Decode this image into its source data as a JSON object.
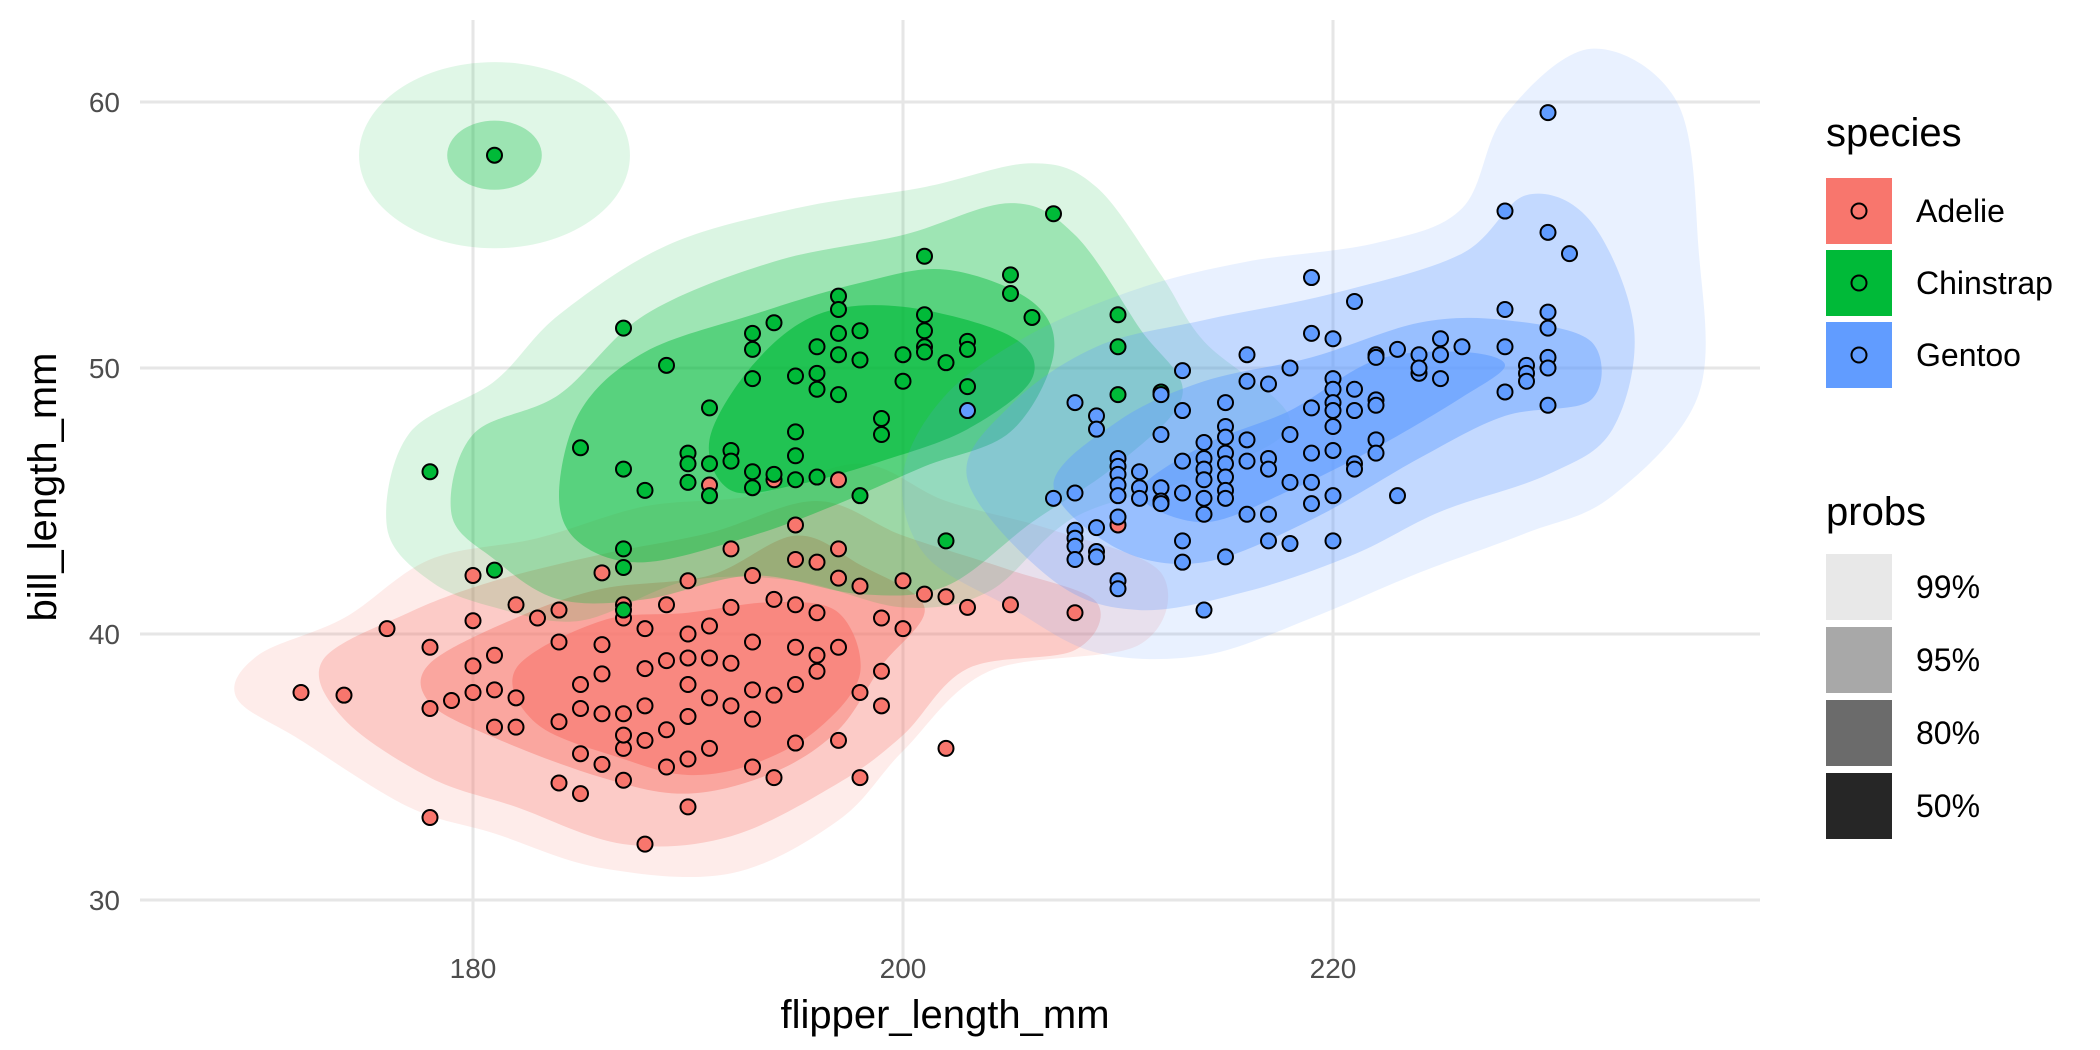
{
  "chart_data": {
    "type": "scatter",
    "subtype": "2d-density-contour-with-points",
    "title": "",
    "xlabel": "flipper_length_mm",
    "ylabel": "bill_length_mm",
    "xlim": [
      165,
      238
    ],
    "ylim": [
      29,
      63
    ],
    "xticks": [
      180,
      200,
      220
    ],
    "yticks": [
      30,
      40,
      50,
      60
    ],
    "grid": true,
    "legend_position": "right",
    "legends": [
      {
        "title": "species",
        "entries": [
          {
            "label": "Adelie",
            "color": "#F8766D"
          },
          {
            "label": "Chinstrap",
            "color": "#00BA38"
          },
          {
            "label": "Gentoo",
            "color": "#619CFF"
          }
        ]
      },
      {
        "title": "probs",
        "entries": [
          {
            "label": "99%",
            "color": "#E8E8E8"
          },
          {
            "label": "95%",
            "color": "#A8A8A8"
          },
          {
            "label": "80%",
            "color": "#6B6B6B"
          },
          {
            "label": "50%",
            "color": "#262626"
          }
        ]
      }
    ],
    "contour_probs": [
      0.99,
      0.95,
      0.8,
      0.5
    ],
    "series": [
      {
        "name": "Adelie",
        "color": "#F8766D",
        "points": [
          [
            172,
            37.8
          ],
          [
            174,
            37.7
          ],
          [
            176,
            40.2
          ],
          [
            178,
            33.1
          ],
          [
            178,
            37.2
          ],
          [
            178,
            39.5
          ],
          [
            179,
            37.5
          ],
          [
            180,
            42.2
          ],
          [
            180,
            40.5
          ],
          [
            180,
            38.8
          ],
          [
            180,
            37.8
          ],
          [
            181,
            37.9
          ],
          [
            181,
            39.2
          ],
          [
            181,
            36.5
          ],
          [
            182,
            36.5
          ],
          [
            182,
            41.1
          ],
          [
            182,
            37.6
          ],
          [
            183,
            40.6
          ],
          [
            184,
            34.4
          ],
          [
            184,
            39.7
          ],
          [
            184,
            40.9
          ],
          [
            184,
            36.7
          ],
          [
            185,
            34.0
          ],
          [
            185,
            35.5
          ],
          [
            185,
            37.2
          ],
          [
            185,
            38.1
          ],
          [
            186,
            35.1
          ],
          [
            186,
            37.0
          ],
          [
            186,
            38.5
          ],
          [
            186,
            39.6
          ],
          [
            186,
            42.3
          ],
          [
            187,
            35.7
          ],
          [
            187,
            36.2
          ],
          [
            187,
            40.6
          ],
          [
            187,
            41.1
          ],
          [
            187,
            34.5
          ],
          [
            187,
            37.0
          ],
          [
            188,
            32.1
          ],
          [
            188,
            36.0
          ],
          [
            188,
            37.3
          ],
          [
            188,
            40.2
          ],
          [
            188,
            38.7
          ],
          [
            189,
            35.0
          ],
          [
            189,
            36.4
          ],
          [
            189,
            39.0
          ],
          [
            189,
            41.1
          ],
          [
            190,
            33.5
          ],
          [
            190,
            35.3
          ],
          [
            190,
            36.9
          ],
          [
            190,
            38.1
          ],
          [
            190,
            39.1
          ],
          [
            190,
            40.0
          ],
          [
            190,
            42.0
          ],
          [
            191,
            35.7
          ],
          [
            191,
            37.6
          ],
          [
            191,
            39.1
          ],
          [
            191,
            40.3
          ],
          [
            191,
            45.6
          ],
          [
            192,
            37.3
          ],
          [
            192,
            38.9
          ],
          [
            192,
            41.0
          ],
          [
            192,
            43.2
          ],
          [
            193,
            35.0
          ],
          [
            193,
            36.8
          ],
          [
            193,
            37.9
          ],
          [
            193,
            39.7
          ],
          [
            193,
            42.2
          ],
          [
            194,
            34.6
          ],
          [
            194,
            37.7
          ],
          [
            194,
            41.3
          ],
          [
            194,
            45.8
          ],
          [
            195,
            35.9
          ],
          [
            195,
            38.1
          ],
          [
            195,
            39.5
          ],
          [
            195,
            41.1
          ],
          [
            195,
            42.8
          ],
          [
            195,
            44.1
          ],
          [
            196,
            38.6
          ],
          [
            196,
            39.2
          ],
          [
            196,
            40.8
          ],
          [
            196,
            42.7
          ],
          [
            197,
            36.0
          ],
          [
            197,
            39.5
          ],
          [
            197,
            42.1
          ],
          [
            197,
            43.2
          ],
          [
            197,
            45.8
          ],
          [
            198,
            34.6
          ],
          [
            198,
            37.8
          ],
          [
            198,
            41.8
          ],
          [
            199,
            37.3
          ],
          [
            199,
            38.6
          ],
          [
            199,
            40.6
          ],
          [
            200,
            40.2
          ],
          [
            200,
            42.0
          ],
          [
            201,
            41.5
          ],
          [
            202,
            35.7
          ],
          [
            202,
            41.4
          ],
          [
            203,
            41.0
          ],
          [
            205,
            41.1
          ],
          [
            208,
            40.8
          ],
          [
            210,
            44.1
          ]
        ]
      },
      {
        "name": "Chinstrap",
        "color": "#00BA38",
        "points": [
          [
            178,
            46.1
          ],
          [
            181,
            58.0
          ],
          [
            181,
            42.4
          ],
          [
            185,
            47.0
          ],
          [
            187,
            51.5
          ],
          [
            187,
            46.2
          ],
          [
            187,
            43.2
          ],
          [
            187,
            42.5
          ],
          [
            187,
            40.9
          ],
          [
            188,
            45.4
          ],
          [
            189,
            50.1
          ],
          [
            190,
            46.8
          ],
          [
            190,
            46.4
          ],
          [
            190,
            45.7
          ],
          [
            191,
            48.5
          ],
          [
            191,
            46.4
          ],
          [
            191,
            45.2
          ],
          [
            192,
            46.9
          ],
          [
            192,
            46.5
          ],
          [
            193,
            51.3
          ],
          [
            193,
            50.7
          ],
          [
            193,
            49.6
          ],
          [
            193,
            46.1
          ],
          [
            193,
            45.5
          ],
          [
            194,
            51.7
          ],
          [
            194,
            46.0
          ],
          [
            195,
            49.7
          ],
          [
            195,
            47.6
          ],
          [
            195,
            46.7
          ],
          [
            195,
            45.8
          ],
          [
            196,
            50.8
          ],
          [
            196,
            49.8
          ],
          [
            196,
            49.2
          ],
          [
            196,
            45.9
          ],
          [
            197,
            52.7
          ],
          [
            197,
            52.2
          ],
          [
            197,
            51.3
          ],
          [
            197,
            50.5
          ],
          [
            197,
            49.0
          ],
          [
            198,
            51.4
          ],
          [
            198,
            50.3
          ],
          [
            198,
            45.2
          ],
          [
            199,
            48.1
          ],
          [
            199,
            47.5
          ],
          [
            200,
            50.5
          ],
          [
            200,
            49.5
          ],
          [
            201,
            54.2
          ],
          [
            201,
            52.0
          ],
          [
            201,
            51.4
          ],
          [
            201,
            50.8
          ],
          [
            201,
            50.6
          ],
          [
            202,
            50.2
          ],
          [
            202,
            43.5
          ],
          [
            203,
            51.0
          ],
          [
            203,
            50.7
          ],
          [
            203,
            49.3
          ],
          [
            205,
            53.5
          ],
          [
            205,
            52.8
          ],
          [
            206,
            51.9
          ],
          [
            207,
            55.8
          ],
          [
            210,
            52.0
          ],
          [
            210,
            50.8
          ],
          [
            210,
            49.0
          ],
          [
            212,
            49.1
          ]
        ]
      },
      {
        "name": "Gentoo",
        "color": "#619CFF",
        "points": [
          [
            203,
            48.4
          ],
          [
            207,
            45.1
          ],
          [
            208,
            48.7
          ],
          [
            208,
            45.3
          ],
          [
            208,
            43.9
          ],
          [
            208,
            43.6
          ],
          [
            208,
            43.3
          ],
          [
            208,
            42.8
          ],
          [
            209,
            48.2
          ],
          [
            209,
            47.7
          ],
          [
            209,
            44.0
          ],
          [
            209,
            43.1
          ],
          [
            209,
            42.9
          ],
          [
            210,
            46.6
          ],
          [
            210,
            46.3
          ],
          [
            210,
            46.0
          ],
          [
            210,
            45.6
          ],
          [
            210,
            45.2
          ],
          [
            210,
            44.4
          ],
          [
            210,
            42.0
          ],
          [
            210,
            41.7
          ],
          [
            211,
            46.1
          ],
          [
            211,
            45.5
          ],
          [
            211,
            45.1
          ],
          [
            212,
            49.0
          ],
          [
            212,
            47.5
          ],
          [
            212,
            45.5
          ],
          [
            212,
            45.0
          ],
          [
            212,
            44.9
          ],
          [
            213,
            49.9
          ],
          [
            213,
            48.4
          ],
          [
            213,
            46.5
          ],
          [
            213,
            45.3
          ],
          [
            213,
            43.5
          ],
          [
            213,
            42.7
          ],
          [
            214,
            47.2
          ],
          [
            214,
            46.6
          ],
          [
            214,
            46.2
          ],
          [
            214,
            45.8
          ],
          [
            214,
            45.1
          ],
          [
            214,
            44.5
          ],
          [
            214,
            40.9
          ],
          [
            215,
            48.7
          ],
          [
            215,
            47.8
          ],
          [
            215,
            47.4
          ],
          [
            215,
            46.8
          ],
          [
            215,
            46.4
          ],
          [
            215,
            45.9
          ],
          [
            215,
            45.4
          ],
          [
            215,
            45.1
          ],
          [
            215,
            42.9
          ],
          [
            216,
            50.5
          ],
          [
            216,
            49.5
          ],
          [
            216,
            47.3
          ],
          [
            216,
            46.5
          ],
          [
            216,
            44.5
          ],
          [
            217,
            49.4
          ],
          [
            217,
            46.6
          ],
          [
            217,
            46.2
          ],
          [
            217,
            44.5
          ],
          [
            217,
            43.5
          ],
          [
            218,
            50.0
          ],
          [
            218,
            47.5
          ],
          [
            218,
            45.7
          ],
          [
            218,
            43.4
          ],
          [
            219,
            53.4
          ],
          [
            219,
            51.3
          ],
          [
            219,
            48.5
          ],
          [
            219,
            46.8
          ],
          [
            219,
            45.7
          ],
          [
            219,
            44.9
          ],
          [
            220,
            51.1
          ],
          [
            220,
            49.6
          ],
          [
            220,
            49.2
          ],
          [
            220,
            48.7
          ],
          [
            220,
            48.4
          ],
          [
            220,
            47.8
          ],
          [
            220,
            46.9
          ],
          [
            220,
            45.2
          ],
          [
            220,
            43.5
          ],
          [
            221,
            52.5
          ],
          [
            221,
            49.2
          ],
          [
            221,
            48.4
          ],
          [
            221,
            46.4
          ],
          [
            221,
            46.2
          ],
          [
            222,
            50.5
          ],
          [
            222,
            50.4
          ],
          [
            222,
            48.8
          ],
          [
            222,
            48.6
          ],
          [
            222,
            47.3
          ],
          [
            222,
            46.8
          ],
          [
            223,
            50.7
          ],
          [
            223,
            45.2
          ],
          [
            224,
            50.5
          ],
          [
            224,
            49.8
          ],
          [
            224,
            50.0
          ],
          [
            225,
            51.1
          ],
          [
            225,
            50.5
          ],
          [
            225,
            49.6
          ],
          [
            226,
            50.8
          ],
          [
            228,
            55.9
          ],
          [
            228,
            52.2
          ],
          [
            228,
            50.8
          ],
          [
            228,
            49.1
          ],
          [
            229,
            50.1
          ],
          [
            229,
            49.8
          ],
          [
            229,
            49.5
          ],
          [
            230,
            59.6
          ],
          [
            230,
            55.1
          ],
          [
            230,
            52.1
          ],
          [
            230,
            51.5
          ],
          [
            230,
            50.4
          ],
          [
            230,
            50.0
          ],
          [
            230,
            48.6
          ],
          [
            231,
            54.3
          ]
        ]
      }
    ]
  }
}
